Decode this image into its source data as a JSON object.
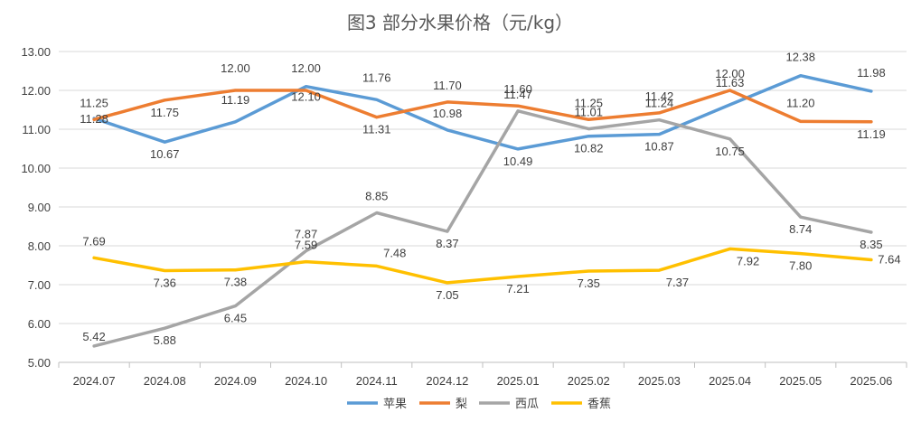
{
  "chart_data": {
    "type": "line",
    "title": "图3  部分水果价格（元/kg）",
    "xlabel": "",
    "ylabel": "",
    "categories": [
      "2024.07",
      "2024.08",
      "2024.09",
      "2024.10",
      "2024.11",
      "2024.12",
      "2025.01",
      "2025.02",
      "2025.03",
      "2025.04",
      "2025.05",
      "2025.06"
    ],
    "ylim": [
      5.0,
      13.0
    ],
    "ytick_step": 1.0,
    "grid": true,
    "legend_position": "bottom",
    "series": [
      {
        "name": "苹果",
        "color": "#5b9bd5",
        "values": [
          11.28,
          10.67,
          11.19,
          12.1,
          11.76,
          10.98,
          10.49,
          10.82,
          10.87,
          11.63,
          12.38,
          11.98
        ]
      },
      {
        "name": "梨",
        "color": "#ed7d31",
        "values": [
          11.25,
          11.75,
          12.0,
          12.0,
          11.31,
          11.7,
          11.6,
          11.25,
          11.42,
          12.0,
          11.2,
          11.19
        ]
      },
      {
        "name": "西瓜",
        "color": "#a5a5a5",
        "values": [
          5.42,
          5.88,
          6.45,
          7.87,
          8.85,
          8.37,
          11.47,
          11.01,
          11.24,
          10.75,
          8.74,
          8.35
        ]
      },
      {
        "name": "香蕉",
        "color": "#ffc000",
        "values": [
          7.69,
          7.36,
          7.38,
          7.59,
          7.48,
          7.05,
          7.21,
          7.35,
          7.37,
          7.92,
          7.8,
          7.64
        ]
      }
    ]
  }
}
